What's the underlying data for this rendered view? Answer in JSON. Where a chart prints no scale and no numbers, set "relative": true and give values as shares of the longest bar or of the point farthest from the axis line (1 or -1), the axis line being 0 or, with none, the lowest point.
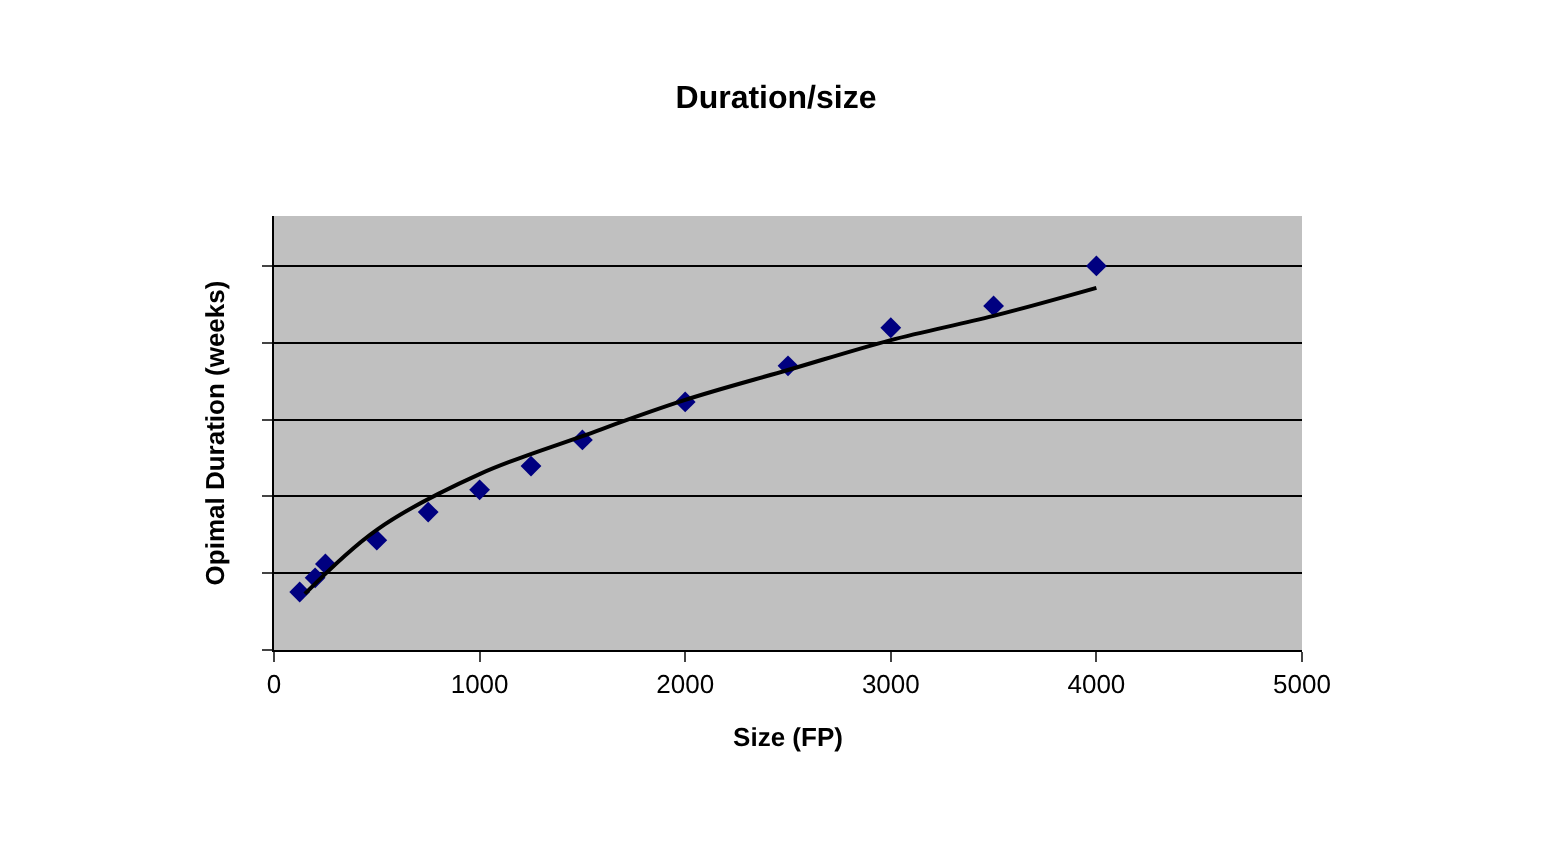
{
  "chart_data": {
    "type": "scatter",
    "title": "Duration/size",
    "xlabel": "Size (FP)",
    "ylabel": "Opimal Duration (weeks)",
    "relative": true,
    "xlim": [
      0,
      5000
    ],
    "xticks": [
      0,
      1000,
      2000,
      3000,
      4000,
      5000
    ],
    "grid": "y",
    "tick_labels": "x",
    "series": [
      {
        "color": "#000080",
        "marker": "diamond",
        "x": [
          125,
          200,
          250,
          500,
          750,
          1000,
          1250,
          1500,
          2000,
          2500,
          3000,
          3500,
          4000
        ],
        "values": [
          0.151,
          0.188,
          0.224,
          0.286,
          0.359,
          0.417,
          0.479,
          0.547,
          0.646,
          0.74,
          0.839,
          0.896,
          1
        ]
      },
      {
        "type": "line",
        "color": "#000000",
        "line_style": "solid",
        "x": [
          150,
          500,
          1000,
          1500,
          2000,
          2500,
          3000,
          3500,
          4000
        ],
        "values": [
          0.146,
          0.313,
          0.458,
          0.557,
          0.651,
          0.729,
          0.807,
          0.87,
          0.943
        ]
      }
    ]
  }
}
